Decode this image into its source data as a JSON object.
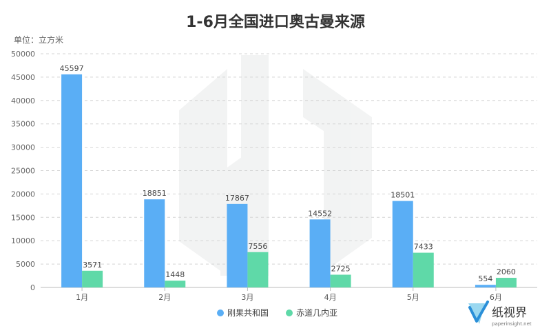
{
  "chart_data": {
    "type": "bar",
    "title": "1-6月全国进口奥古曼来源",
    "unit_label": "单位：立方米",
    "categories": [
      "1月",
      "2月",
      "3月",
      "4月",
      "5月",
      "6月"
    ],
    "series": [
      {
        "name": "刚果共和国",
        "color": "#5aaef5",
        "values": [
          45597,
          18851,
          17867,
          14552,
          18501,
          554
        ]
      },
      {
        "name": "赤道几内亚",
        "color": "#5fd9a8",
        "values": [
          3571,
          1448,
          7556,
          2725,
          7433,
          2060
        ]
      }
    ],
    "ylim": [
      0,
      50000
    ],
    "y_ticks": [
      0,
      5000,
      10000,
      15000,
      20000,
      25000,
      30000,
      35000,
      40000,
      45000,
      50000
    ],
    "grid": true,
    "legend_position": "bottom-center"
  },
  "watermark": {
    "brand_name": "纸视界",
    "site": "paperinsight.net"
  }
}
